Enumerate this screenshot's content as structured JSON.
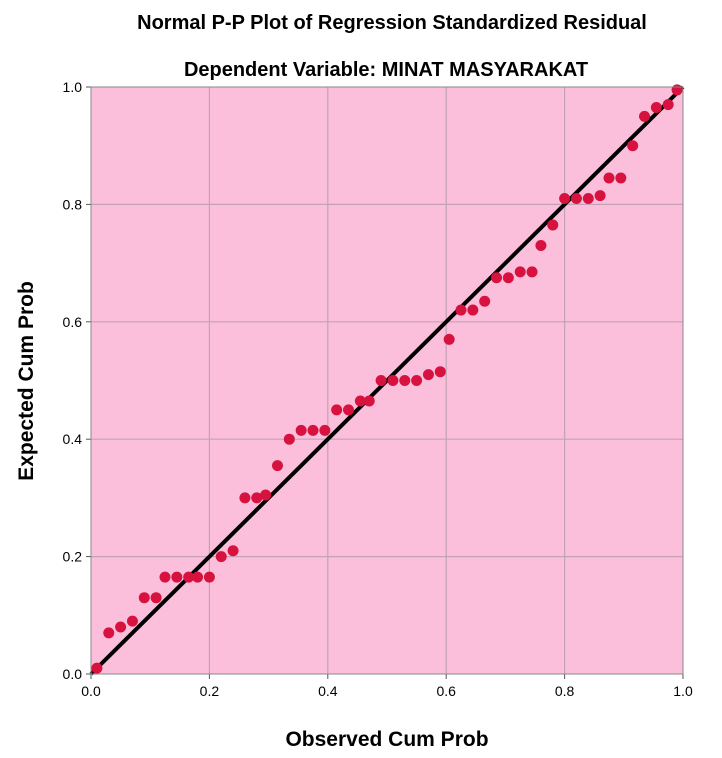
{
  "chart_data": {
    "type": "scatter",
    "title": "Normal P-P Plot of Regression Standardized Residual",
    "subtitle": "Dependent Variable: MINAT MASYARAKAT",
    "xlabel": "Observed Cum Prob",
    "ylabel": "Expected Cum Prob",
    "xlim": [
      0,
      1
    ],
    "ylim": [
      0,
      1
    ],
    "xticks": [
      "0.0",
      "0.2",
      "0.4",
      "0.6",
      "0.8",
      "1.0"
    ],
    "yticks": [
      "0.0",
      "0.2",
      "0.4",
      "0.6",
      "0.8",
      "1.0"
    ],
    "grid": true,
    "legend": "none",
    "colors": {
      "background": "#fbbfdc",
      "points": "#d8123f",
      "reference_line": "#000000",
      "grid": "#c2a3b3"
    },
    "reference_line": [
      [
        0,
        0
      ],
      [
        1,
        1
      ]
    ],
    "points": [
      [
        0.01,
        0.01
      ],
      [
        0.03,
        0.07
      ],
      [
        0.05,
        0.08
      ],
      [
        0.07,
        0.09
      ],
      [
        0.09,
        0.13
      ],
      [
        0.11,
        0.13
      ],
      [
        0.125,
        0.165
      ],
      [
        0.145,
        0.165
      ],
      [
        0.165,
        0.165
      ],
      [
        0.18,
        0.165
      ],
      [
        0.2,
        0.165
      ],
      [
        0.22,
        0.2
      ],
      [
        0.24,
        0.21
      ],
      [
        0.26,
        0.3
      ],
      [
        0.28,
        0.3
      ],
      [
        0.295,
        0.305
      ],
      [
        0.315,
        0.355
      ],
      [
        0.335,
        0.4
      ],
      [
        0.355,
        0.415
      ],
      [
        0.375,
        0.415
      ],
      [
        0.395,
        0.415
      ],
      [
        0.415,
        0.45
      ],
      [
        0.435,
        0.45
      ],
      [
        0.455,
        0.465
      ],
      [
        0.47,
        0.465
      ],
      [
        0.49,
        0.5
      ],
      [
        0.51,
        0.5
      ],
      [
        0.53,
        0.5
      ],
      [
        0.55,
        0.5
      ],
      [
        0.57,
        0.51
      ],
      [
        0.59,
        0.515
      ],
      [
        0.605,
        0.57
      ],
      [
        0.625,
        0.62
      ],
      [
        0.645,
        0.62
      ],
      [
        0.665,
        0.635
      ],
      [
        0.685,
        0.675
      ],
      [
        0.705,
        0.675
      ],
      [
        0.725,
        0.685
      ],
      [
        0.745,
        0.685
      ],
      [
        0.76,
        0.73
      ],
      [
        0.78,
        0.765
      ],
      [
        0.8,
        0.81
      ],
      [
        0.82,
        0.81
      ],
      [
        0.84,
        0.81
      ],
      [
        0.86,
        0.815
      ],
      [
        0.875,
        0.845
      ],
      [
        0.895,
        0.845
      ],
      [
        0.915,
        0.9
      ],
      [
        0.935,
        0.95
      ],
      [
        0.955,
        0.965
      ],
      [
        0.975,
        0.97
      ],
      [
        0.99,
        0.995
      ]
    ]
  }
}
